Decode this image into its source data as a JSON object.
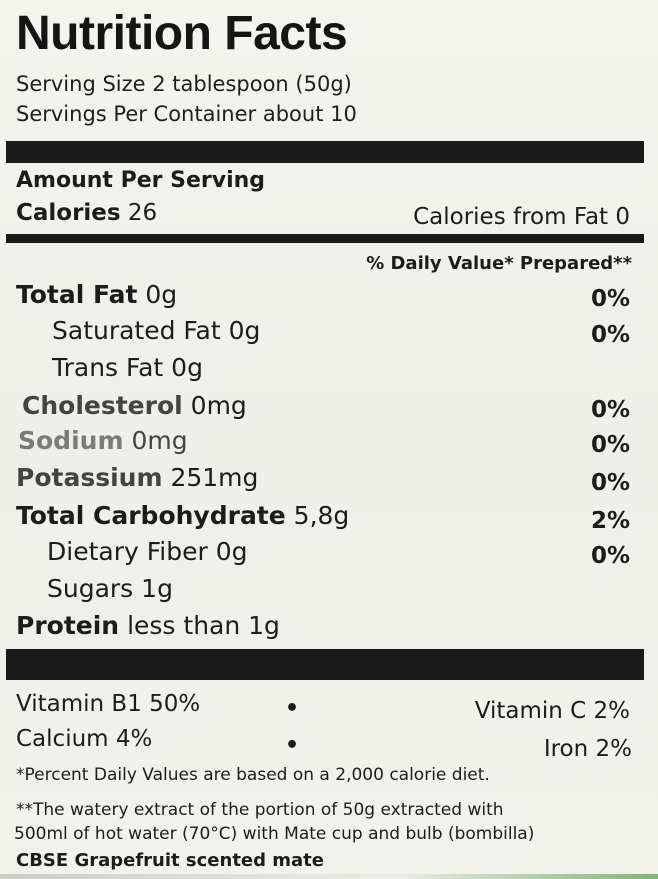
{
  "title": "Nutrition Facts",
  "serving_size": "Serving Size 2 tablespoon (50g)",
  "servings_per_container": "Servings Per Container about 10",
  "amount_per_serving": "Amount Per Serving",
  "calories_label": "Calories",
  "calories_value": "26",
  "calories_from_fat": "Calories from Fat 0",
  "daily_value_header": "% Daily Value* Prepared**",
  "nutrients": [
    {
      "name": "Total Fat",
      "amount": "0g",
      "percent": "0%"
    },
    {
      "name": "Saturated Fat",
      "amount": "0g",
      "percent": "0%"
    },
    {
      "name": "Trans Fat",
      "amount": "0g",
      "percent": ""
    },
    {
      "name": "Cholesterol",
      "amount": "0mg",
      "percent": "0%"
    },
    {
      "name": "Sodium",
      "amount": "0mg",
      "percent": "0%"
    },
    {
      "name": "Potassium",
      "amount": "251mg",
      "percent": "0%"
    },
    {
      "name": "Total Carbohydrate",
      "amount": "5,8g",
      "percent": "2%"
    },
    {
      "name": "Dietary Fiber",
      "amount": "0g",
      "percent": "0%"
    },
    {
      "name": "Sugars",
      "amount": "1g",
      "percent": ""
    },
    {
      "name": "Protein",
      "amount": "less than 1g",
      "percent": ""
    }
  ],
  "vitamins": [
    {
      "left": "Vitamin B1 50%",
      "right": "Vitamin C 2%"
    },
    {
      "left": "Calcium 4%",
      "right": "Iron 2%"
    }
  ],
  "bullet": "•",
  "footnote1": "*Percent Daily Values are based on a 2,000 calorie diet.",
  "footnote2a": "**The watery extract of the portion of 50g extracted with",
  "footnote2b": "500ml of hot water (70°C) with Mate cup and bulb (bombilla)",
  "product_name": "CBSE Grapefruit scented mate"
}
